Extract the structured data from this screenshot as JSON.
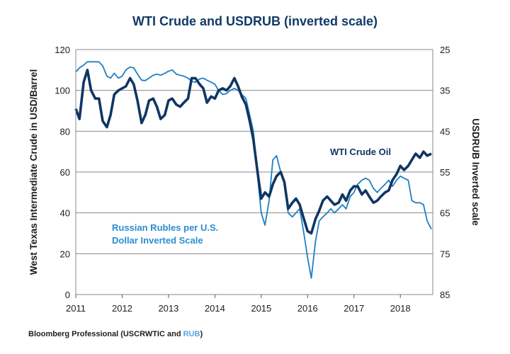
{
  "chart_data": {
    "type": "line",
    "title": "WTI Crude and USDRUB (inverted scale)",
    "source": {
      "prefix": "Bloomberg Professional (USCRWTIC and ",
      "highlight": "RUB",
      "suffix": ")"
    },
    "xlabel": "",
    "ylabel_left": "West Texas Intermediate Crude in USD/Barrel",
    "ylabel_right": "USDRUB Inverted scale",
    "xlim": [
      2011,
      2018.7
    ],
    "ylim_left": [
      0,
      120
    ],
    "ylim_right": [
      85,
      25
    ],
    "x_ticks": [
      2011,
      2012,
      2013,
      2014,
      2015,
      2016,
      2017,
      2018
    ],
    "left_ticks": [
      0,
      20,
      40,
      60,
      80,
      100,
      120
    ],
    "right_ticks": [
      25,
      35,
      45,
      55,
      65,
      75,
      85
    ],
    "grid": true,
    "colors": {
      "wti": "#0f3663",
      "rub": "#1f7fc3",
      "rub_label": "#2a8ed0",
      "title": "#123a66",
      "grid": "#8a8a8a"
    },
    "series": [
      {
        "name": "WTI Crude Oil",
        "axis": "left",
        "x": [
          2011.0,
          2011.08,
          2011.17,
          2011.25,
          2011.33,
          2011.42,
          2011.5,
          2011.58,
          2011.67,
          2011.75,
          2011.83,
          2011.92,
          2012.0,
          2012.08,
          2012.17,
          2012.25,
          2012.33,
          2012.42,
          2012.5,
          2012.58,
          2012.67,
          2012.75,
          2012.83,
          2012.92,
          2013.0,
          2013.08,
          2013.17,
          2013.25,
          2013.33,
          2013.42,
          2013.5,
          2013.58,
          2013.67,
          2013.75,
          2013.83,
          2013.92,
          2014.0,
          2014.08,
          2014.17,
          2014.25,
          2014.33,
          2014.42,
          2014.5,
          2014.58,
          2014.67,
          2014.75,
          2014.83,
          2014.92,
          2015.0,
          2015.08,
          2015.17,
          2015.25,
          2015.33,
          2015.42,
          2015.5,
          2015.58,
          2015.67,
          2015.75,
          2015.83,
          2015.92,
          2016.0,
          2016.08,
          2016.17,
          2016.25,
          2016.33,
          2016.42,
          2016.5,
          2016.58,
          2016.67,
          2016.75,
          2016.83,
          2016.92,
          2017.0,
          2017.08,
          2017.17,
          2017.25,
          2017.33,
          2017.42,
          2017.5,
          2017.58,
          2017.67,
          2017.75,
          2017.83,
          2017.92,
          2018.0,
          2018.08,
          2018.17,
          2018.25,
          2018.33,
          2018.42,
          2018.5,
          2018.58,
          2018.67
        ],
        "values": [
          91,
          86,
          104,
          110,
          100,
          96,
          96,
          85,
          82,
          88,
          98,
          100,
          101,
          102,
          106,
          103,
          95,
          84,
          88,
          95,
          96,
          92,
          86,
          88,
          95,
          96,
          93,
          92,
          94,
          96,
          106,
          106,
          103,
          101,
          94,
          97,
          96,
          100,
          101,
          100,
          102,
          106,
          102,
          97,
          93,
          85,
          76,
          60,
          47,
          50,
          48,
          54,
          58,
          60,
          55,
          42,
          45,
          47,
          44,
          37,
          31,
          30,
          37,
          41,
          46,
          48,
          46,
          44,
          45,
          49,
          46,
          51,
          53,
          53,
          49,
          51,
          48,
          45,
          46,
          48,
          50,
          51,
          56,
          59,
          63,
          61,
          63,
          66,
          69,
          67,
          70,
          68,
          69
        ]
      },
      {
        "name": "Russian Rubles per U.S. Dollar Inverted Scale",
        "axis": "right",
        "x": [
          2011.0,
          2011.08,
          2011.17,
          2011.25,
          2011.33,
          2011.42,
          2011.5,
          2011.58,
          2011.67,
          2011.75,
          2011.83,
          2011.92,
          2012.0,
          2012.08,
          2012.17,
          2012.25,
          2012.33,
          2012.42,
          2012.5,
          2012.58,
          2012.67,
          2012.75,
          2012.83,
          2012.92,
          2013.0,
          2013.08,
          2013.17,
          2013.25,
          2013.33,
          2013.42,
          2013.5,
          2013.58,
          2013.67,
          2013.75,
          2013.83,
          2013.92,
          2014.0,
          2014.08,
          2014.17,
          2014.25,
          2014.33,
          2014.42,
          2014.5,
          2014.58,
          2014.67,
          2014.75,
          2014.83,
          2014.92,
          2015.0,
          2015.08,
          2015.17,
          2015.25,
          2015.33,
          2015.42,
          2015.5,
          2015.58,
          2015.67,
          2015.75,
          2015.83,
          2015.92,
          2016.0,
          2016.08,
          2016.17,
          2016.25,
          2016.33,
          2016.42,
          2016.5,
          2016.58,
          2016.67,
          2016.75,
          2016.83,
          2016.92,
          2017.0,
          2017.08,
          2017.17,
          2017.25,
          2017.33,
          2017.42,
          2017.5,
          2017.58,
          2017.67,
          2017.75,
          2017.83,
          2017.92,
          2018.0,
          2018.08,
          2018.17,
          2018.25,
          2018.33,
          2018.42,
          2018.5,
          2018.58,
          2018.67
        ],
        "values": [
          30.5,
          29.5,
          28.8,
          28.0,
          28.0,
          28.0,
          28.0,
          29.0,
          31.5,
          32.0,
          30.8,
          32.0,
          31.5,
          30.0,
          29.3,
          29.5,
          31.0,
          32.5,
          32.6,
          32.0,
          31.3,
          31.0,
          31.3,
          30.8,
          30.3,
          30.0,
          31.0,
          31.3,
          31.5,
          32.0,
          32.8,
          33.0,
          32.2,
          32.0,
          32.5,
          33.0,
          33.5,
          35.0,
          36.0,
          35.8,
          35.0,
          34.5,
          35.0,
          36.0,
          37.0,
          41.0,
          45.0,
          56.0,
          65.0,
          68.0,
          62.0,
          52.0,
          51.0,
          55.0,
          57.0,
          65.0,
          66.0,
          65.0,
          64.0,
          70.0,
          76.0,
          81.0,
          72.0,
          67.0,
          66.0,
          65.0,
          64.0,
          65.0,
          64.0,
          63.0,
          64.0,
          61.0,
          60.0,
          58.0,
          57.0,
          56.5,
          57.0,
          59.0,
          60.0,
          59.0,
          58.0,
          57.0,
          58.5,
          57.0,
          56.0,
          56.5,
          57.0,
          62.0,
          62.5,
          62.5,
          63.0,
          67.0,
          69.0
        ]
      }
    ],
    "annotations": {
      "wti_label": "WTI Crude Oil",
      "rub_label_line1": "Russian Rubles per U.S.",
      "rub_label_line2": "Dollar Inverted Scale"
    }
  }
}
